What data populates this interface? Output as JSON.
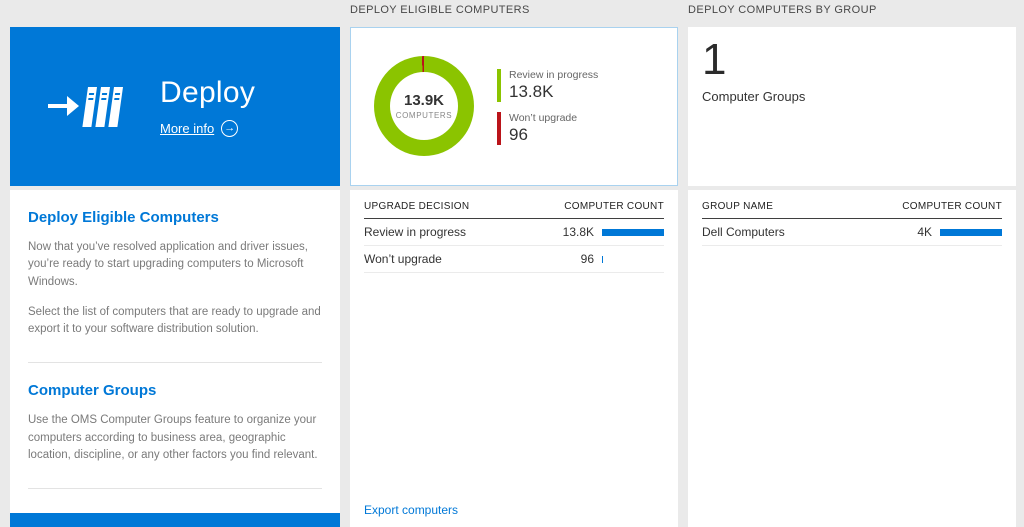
{
  "colors": {
    "accent_blue": "#0078d7",
    "donut_green": "#8bc400",
    "warn_red": "#ba141a",
    "bar_blue": "#0078d7"
  },
  "left": {
    "tile": {
      "title": "Deploy",
      "more_info_label": "More info"
    },
    "sections": [
      {
        "heading": "Deploy Eligible Computers",
        "paragraphs": [
          "Now that you’ve resolved application and driver issues, you’re ready to start upgrading computers to Microsoft Windows.",
          "Select the list of computers that are ready to upgrade and export it to your software distribution solution."
        ]
      },
      {
        "heading": "Computer Groups",
        "paragraphs": [
          "Use the OMS Computer Groups feature to organize your computers according to business area, geographic location, discipline, or any other factors you find relevant."
        ]
      }
    ]
  },
  "middle": {
    "title": "DEPLOY ELIGIBLE COMPUTERS",
    "donut": {
      "center_value": "13.9K",
      "center_label": "COMPUTERS",
      "segments": [
        {
          "label": "Review in progress",
          "display": "13.8K",
          "value": 13800,
          "color": "#8bc400"
        },
        {
          "label": "Won’t upgrade",
          "display": "96",
          "value": 96,
          "color": "#ba141a"
        }
      ]
    },
    "table": {
      "col1": "UPGRADE DECISION",
      "col2": "COMPUTER COUNT",
      "rows": [
        {
          "label": "Review in progress",
          "value": "13.8K",
          "bar_pct": 100
        },
        {
          "label": "Won’t upgrade",
          "value": "96",
          "bar_pct": 1.5
        }
      ]
    },
    "export_link": "Export computers"
  },
  "right": {
    "title": "DEPLOY COMPUTERS BY GROUP",
    "summary": {
      "count": "1",
      "label": "Computer Groups"
    },
    "table": {
      "col1": "GROUP NAME",
      "col2": "COMPUTER COUNT",
      "rows": [
        {
          "label": "Dell Computers",
          "value": "4K",
          "bar_pct": 100
        }
      ]
    }
  }
}
